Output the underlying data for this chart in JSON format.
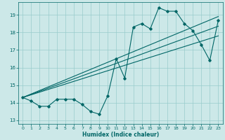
{
  "xlabel": "Humidex (Indice chaleur)",
  "bg_color": "#cce8e8",
  "line_color": "#006666",
  "grid_color": "#99cccc",
  "xlim": [
    -0.5,
    23.5
  ],
  "ylim": [
    12.8,
    19.7
  ],
  "yticks": [
    13,
    14,
    15,
    16,
    17,
    18,
    19
  ],
  "xticks": [
    0,
    1,
    2,
    3,
    4,
    5,
    6,
    7,
    8,
    9,
    10,
    11,
    12,
    13,
    14,
    15,
    16,
    17,
    18,
    19,
    20,
    21,
    22,
    23
  ],
  "series1_x": [
    0,
    1,
    2,
    3,
    4,
    5,
    6,
    7,
    8,
    9,
    10,
    11,
    12,
    13,
    14,
    15,
    16,
    17,
    18,
    19,
    20,
    21,
    22,
    23
  ],
  "series1_y": [
    14.3,
    14.1,
    13.8,
    13.8,
    14.2,
    14.2,
    14.2,
    13.9,
    13.5,
    13.35,
    14.4,
    16.5,
    15.4,
    18.3,
    18.5,
    18.2,
    19.4,
    19.2,
    19.2,
    18.5,
    18.1,
    17.3,
    16.4,
    18.7
  ],
  "line1_y_end": 18.9,
  "line2_y_end": 17.8,
  "line3_y_end": 18.35,
  "line_y_start": 14.3,
  "xlabel_fontsize": 5.5,
  "tick_fontsize": 4.5
}
